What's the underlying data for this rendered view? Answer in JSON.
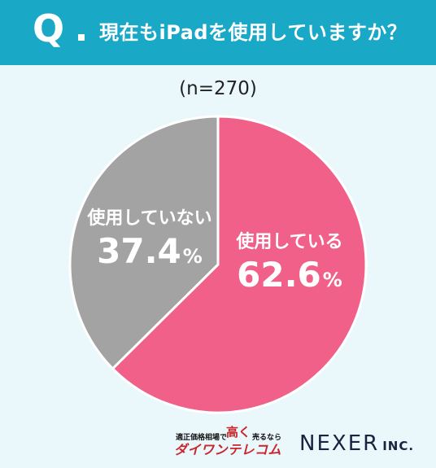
{
  "header": {
    "q_mark": "Q",
    "question": "現在もiPadを使用していますか？"
  },
  "sample": "(n=270)",
  "chart_data": {
    "type": "pie",
    "start": "top",
    "direction": "clockwise",
    "slices": [
      {
        "label": "使用している",
        "value": 62.6,
        "display": "62.6",
        "unit": "%",
        "color": "#f06088"
      },
      {
        "label": "使用していない",
        "value": 37.4,
        "display": "37.4",
        "unit": "%",
        "color": "#a3a3a3"
      }
    ]
  },
  "footer": {
    "sponsor_small_left": "適正価格相場で",
    "sponsor_accent": "高く",
    "sponsor_small_right": "売るなら",
    "sponsor_name": "ダイワンテレコム",
    "company": "NEXER",
    "company_suffix": "INC."
  }
}
